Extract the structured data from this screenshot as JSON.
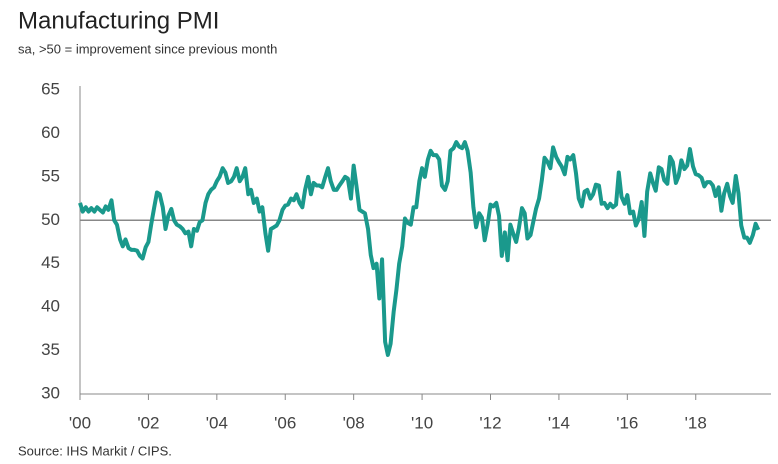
{
  "chart_data": {
    "type": "line",
    "title": "Manufacturing PMI",
    "subtitle": "sa, >50 = improvement since previous month",
    "source": "Source: IHS Markit / CIPS.",
    "x": [
      2000,
      2000.08,
      2000.17,
      2000.25,
      2000.33,
      2000.42,
      2000.5,
      2000.58,
      2000.67,
      2000.75,
      2000.83,
      2000.92,
      2001,
      2001.08,
      2001.17,
      2001.25,
      2001.33,
      2001.42,
      2001.5,
      2001.58,
      2001.67,
      2001.75,
      2001.83,
      2001.92,
      2002,
      2002.08,
      2002.17,
      2002.25,
      2002.33,
      2002.42,
      2002.5,
      2002.58,
      2002.67,
      2002.75,
      2002.83,
      2002.92,
      2003,
      2003.08,
      2003.17,
      2003.25,
      2003.33,
      2003.42,
      2003.5,
      2003.58,
      2003.67,
      2003.75,
      2003.83,
      2003.92,
      2004,
      2004.08,
      2004.17,
      2004.25,
      2004.33,
      2004.42,
      2004.5,
      2004.58,
      2004.67,
      2004.75,
      2004.83,
      2004.92,
      2005,
      2005.08,
      2005.17,
      2005.25,
      2005.33,
      2005.42,
      2005.5,
      2005.58,
      2005.67,
      2005.75,
      2005.83,
      2005.92,
      2006,
      2006.08,
      2006.17,
      2006.25,
      2006.33,
      2006.42,
      2006.5,
      2006.58,
      2006.67,
      2006.75,
      2006.83,
      2006.92,
      2007,
      2007.08,
      2007.17,
      2007.25,
      2007.33,
      2007.42,
      2007.5,
      2007.58,
      2007.67,
      2007.75,
      2007.83,
      2007.92,
      2008,
      2008.08,
      2008.17,
      2008.25,
      2008.33,
      2008.42,
      2008.5,
      2008.58,
      2008.67,
      2008.75,
      2008.83,
      2008.92,
      2009,
      2009.08,
      2009.17,
      2009.25,
      2009.33,
      2009.42,
      2009.5,
      2009.58,
      2009.67,
      2009.75,
      2009.83,
      2009.92,
      2010,
      2010.08,
      2010.17,
      2010.25,
      2010.33,
      2010.42,
      2010.5,
      2010.58,
      2010.67,
      2010.75,
      2010.83,
      2010.92,
      2011,
      2011.08,
      2011.17,
      2011.25,
      2011.33,
      2011.42,
      2011.5,
      2011.58,
      2011.67,
      2011.75,
      2011.83,
      2011.92,
      2012,
      2012.08,
      2012.17,
      2012.25,
      2012.33,
      2012.42,
      2012.5,
      2012.58,
      2012.67,
      2012.75,
      2012.83,
      2012.92,
      2013,
      2013.08,
      2013.17,
      2013.25,
      2013.33,
      2013.42,
      2013.5,
      2013.58,
      2013.67,
      2013.75,
      2013.83,
      2013.92,
      2014,
      2014.08,
      2014.17,
      2014.25,
      2014.33,
      2014.42,
      2014.5,
      2014.58,
      2014.67,
      2014.75,
      2014.83,
      2014.92,
      2015,
      2015.08,
      2015.17,
      2015.25,
      2015.33,
      2015.42,
      2015.5,
      2015.58,
      2015.67,
      2015.75,
      2015.83,
      2015.92,
      2016,
      2016.08,
      2016.17,
      2016.25,
      2016.33,
      2016.42,
      2016.5,
      2016.58,
      2016.67,
      2016.75,
      2016.83,
      2016.92,
      2017,
      2017.08,
      2017.17,
      2017.25,
      2017.33,
      2017.42,
      2017.5,
      2017.58,
      2017.67,
      2017.75,
      2017.83,
      2017.92,
      2018,
      2018.08,
      2018.17,
      2018.25,
      2018.33,
      2018.42,
      2018.5,
      2018.58,
      2018.67,
      2018.75,
      2018.83,
      2018.92,
      2019,
      2019.08,
      2019.17,
      2019.25,
      2019.33,
      2019.42,
      2019.5,
      2019.58,
      2019.67,
      2019.75,
      2019.83
    ],
    "series": [
      {
        "color": "#1a998c",
        "values": [
          52.0,
          51.0,
          51.5,
          51.0,
          51.4,
          51.0,
          51.5,
          51.2,
          50.9,
          51.6,
          51.2,
          52.3,
          50.0,
          49.5,
          47.8,
          47.0,
          47.8,
          46.8,
          46.6,
          46.6,
          46.5,
          45.9,
          45.6,
          46.9,
          47.5,
          49.5,
          51.5,
          53.2,
          53.0,
          51.5,
          49.0,
          50.5,
          51.3,
          50.0,
          49.5,
          49.3,
          49.0,
          48.5,
          48.7,
          47.0,
          49.0,
          48.8,
          49.8,
          50.0,
          52.0,
          53.0,
          53.5,
          53.8,
          54.5,
          55.0,
          56.0,
          55.5,
          54.3,
          54.5,
          55.0,
          56.0,
          54.5,
          55.0,
          56.0,
          53.0,
          53.5,
          52.0,
          52.5,
          51.0,
          51.5,
          48.5,
          46.5,
          49.0,
          49.2,
          49.4,
          50.0,
          51.2,
          51.7,
          51.8,
          52.5,
          52.3,
          53.0,
          52.0,
          51.5,
          53.5,
          55.0,
          53.0,
          54.3,
          54.0,
          54.0,
          53.8,
          55.0,
          56.0,
          54.5,
          53.5,
          53.5,
          54.0,
          54.5,
          55.0,
          54.8,
          52.5,
          56.3,
          54.0,
          51.2,
          51.0,
          50.8,
          49.0,
          46.0,
          44.5,
          45.0,
          41.0,
          45.5,
          36.0,
          34.5,
          35.8,
          39.5,
          42.0,
          45.0,
          47.0,
          50.2,
          49.7,
          49.5,
          51.5,
          51.5,
          54.5,
          56.0,
          55.0,
          57.0,
          58.0,
          57.5,
          57.5,
          57.0,
          54.0,
          53.5,
          54.5,
          58.0,
          58.3,
          59.0,
          58.5,
          58.3,
          59.0,
          58.0,
          55.5,
          51.5,
          49.2,
          50.8,
          50.3,
          47.7,
          49.6,
          51.8,
          51.6,
          52.0,
          50.5,
          45.9,
          48.6,
          45.4,
          49.5,
          48.4,
          47.5,
          49.1,
          51.4,
          50.8,
          47.9,
          48.3,
          49.8,
          51.3,
          52.5,
          54.6,
          57.2,
          56.7,
          56.0,
          58.4,
          57.3,
          56.7,
          56.2,
          55.3,
          57.3,
          57.0,
          57.5,
          55.4,
          52.5,
          51.6,
          53.3,
          53.5,
          52.5,
          53.0,
          54.1,
          54.0,
          51.9,
          52.0,
          51.4,
          51.9,
          51.5,
          51.8,
          55.5,
          52.7,
          51.9,
          52.9,
          50.8,
          51.0,
          49.4,
          50.1,
          52.1,
          48.2,
          53.3,
          55.4,
          54.3,
          53.4,
          56.1,
          55.9,
          54.6,
          54.2,
          57.3,
          56.7,
          54.3,
          55.1,
          56.9,
          55.9,
          56.3,
          58.2,
          56.2,
          55.3,
          55.2,
          54.9,
          53.9,
          54.4,
          54.4,
          54.0,
          52.8,
          53.8,
          51.1,
          53.1,
          54.2,
          52.8,
          52.0,
          55.1,
          53.1,
          49.4,
          48.0,
          48.0,
          47.4,
          48.3,
          49.6,
          48.9
        ]
      }
    ],
    "xlim": [
      2000,
      2020.2
    ],
    "xticks": [
      {
        "value": 2000,
        "label": "'00"
      },
      {
        "value": 2002,
        "label": "'02"
      },
      {
        "value": 2004,
        "label": "'04"
      },
      {
        "value": 2006,
        "label": "'06"
      },
      {
        "value": 2008,
        "label": "'08"
      },
      {
        "value": 2010,
        "label": "'10"
      },
      {
        "value": 2012,
        "label": "'12"
      },
      {
        "value": 2014,
        "label": "'14"
      },
      {
        "value": 2016,
        "label": "'16"
      },
      {
        "value": 2018,
        "label": "'18"
      }
    ],
    "ylim": [
      30,
      65
    ],
    "yticks": [
      30,
      35,
      40,
      45,
      50,
      55,
      60,
      65
    ],
    "reference_line": 50
  }
}
